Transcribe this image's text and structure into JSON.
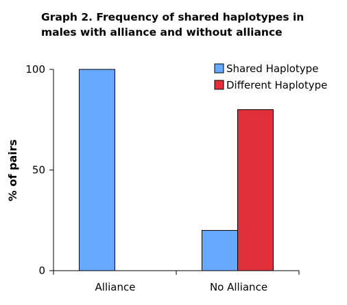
{
  "title_line1": "Graph 2. Frequency of shared haplotypes in",
  "title_line2": "males with alliance and without alliance",
  "chart_data": {
    "type": "bar",
    "categories": [
      "Alliance",
      "No Alliance"
    ],
    "series": [
      {
        "name": "Shared Haplotype",
        "values": [
          100,
          20
        ],
        "color": "#66aaff"
      },
      {
        "name": "Different Haplotype",
        "values": [
          0,
          80
        ],
        "color": "#e0303a"
      }
    ],
    "ylabel": "% of pairs",
    "yticks": [
      "0",
      "50",
      "100"
    ],
    "ylim": [
      0,
      100
    ],
    "grid": false,
    "legend": "top-right"
  }
}
